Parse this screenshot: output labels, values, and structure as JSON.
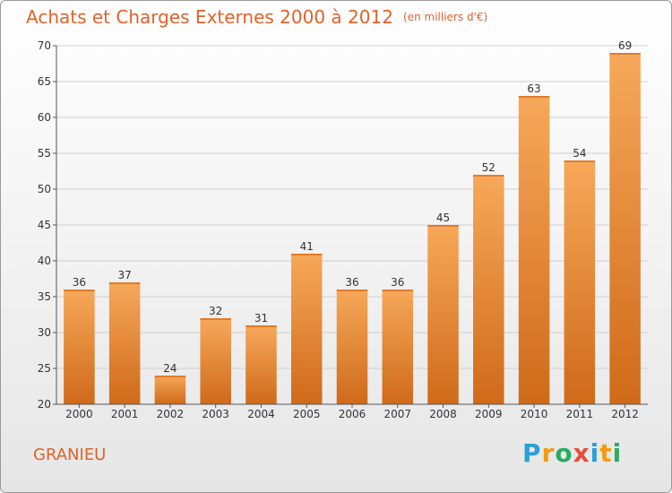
{
  "page": {
    "title": "Achats et Charges Externes 2000 à 2012",
    "subtitle": "(en milliers d'€)",
    "commune": "GRANIEU",
    "brand": "Proxiti",
    "brand_letters": [
      {
        "char": "P",
        "color": "#2a9fd8"
      },
      {
        "char": "r",
        "color": "#f39c12"
      },
      {
        "char": "o",
        "color": "#27ae60"
      },
      {
        "char": "x",
        "color": "#e74c3c"
      },
      {
        "char": "i",
        "color": "#2a9fd8"
      },
      {
        "char": "t",
        "color": "#f39c12"
      },
      {
        "char": "i",
        "color": "#27ae60"
      }
    ]
  },
  "colors": {
    "title": "#e0622a",
    "bar_top": "#f7a85a",
    "bar_bottom": "#cf6a1a",
    "grid": "#cfcfcf",
    "axis": "#555555"
  },
  "chart_data": {
    "type": "bar",
    "title": "Achats et Charges Externes 2000 à 2012",
    "subtitle": "(en milliers d'€)",
    "xlabel": "",
    "ylabel": "",
    "categories": [
      "2000",
      "2001",
      "2002",
      "2003",
      "2004",
      "2005",
      "2006",
      "2007",
      "2008",
      "2009",
      "2010",
      "2011",
      "2012"
    ],
    "values": [
      36,
      37,
      24,
      32,
      31,
      41,
      36,
      36,
      45,
      52,
      63,
      54,
      69
    ],
    "ylim": [
      20,
      70
    ],
    "yticks": [
      20,
      25,
      30,
      35,
      40,
      45,
      50,
      55,
      60,
      65,
      70
    ],
    "grid": true,
    "legend": "none"
  }
}
